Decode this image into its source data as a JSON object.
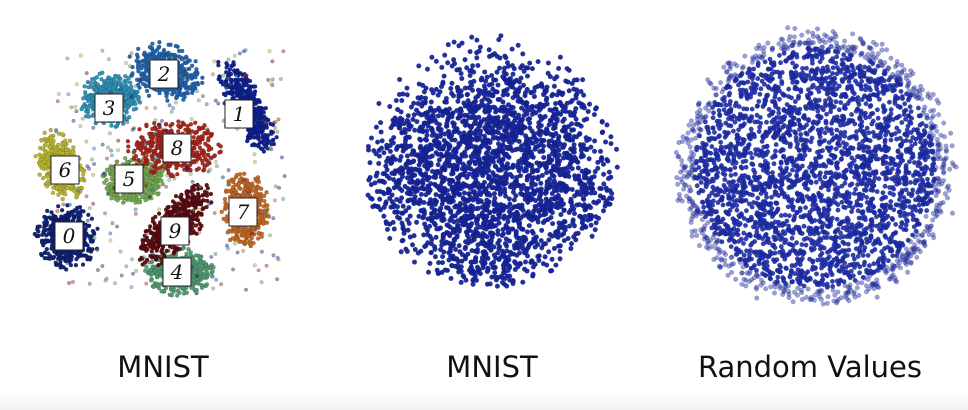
{
  "chart_data": [
    {
      "type": "scatter",
      "title": "MNIST",
      "description_clusters": [
        {
          "digit": "0",
          "color": "#0d1f6e"
        },
        {
          "digit": "1",
          "color": "#0d1f8c"
        },
        {
          "digit": "2",
          "color": "#1f62a8"
        },
        {
          "digit": "3",
          "color": "#2c8fb0"
        },
        {
          "digit": "4",
          "color": "#4f9a6a"
        },
        {
          "digit": "5",
          "color": "#74a84a"
        },
        {
          "digit": "6",
          "color": "#b8b42a"
        },
        {
          "digit": "7",
          "color": "#c2661c"
        },
        {
          "digit": "8",
          "color": "#a82414"
        },
        {
          "digit": "9",
          "color": "#5a0a0a"
        }
      ]
    },
    {
      "type": "scatter",
      "title": "MNIST",
      "color": "#15249a"
    },
    {
      "type": "scatter",
      "title": "Random Values",
      "color": "#1c2ba8"
    }
  ]
}
